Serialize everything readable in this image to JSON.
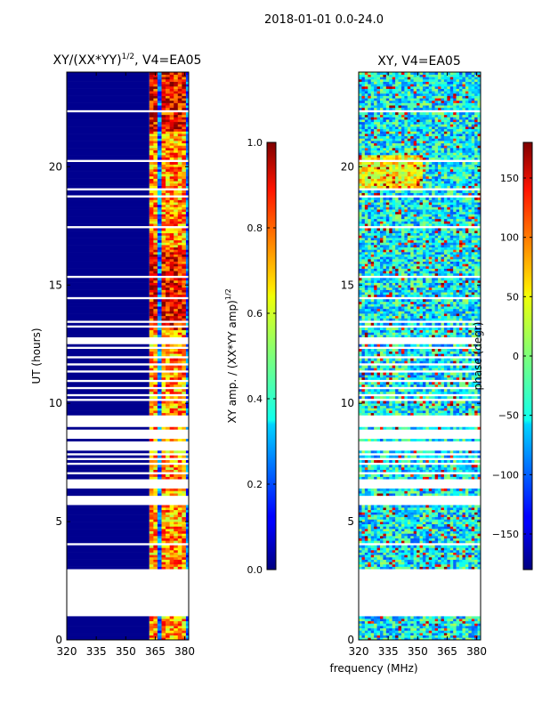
{
  "figure": {
    "suptitle": "2018-01-01 0.0-24.0"
  },
  "shared": {
    "xlabel": "frequency (MHz)"
  },
  "chart_data": [
    {
      "type": "heatmap",
      "title_main": "XY/(XX*YY)",
      "title_sup": "1/2",
      "title_tail": ", V4=EA05",
      "xlabel": "",
      "ylabel": "UT (hours)",
      "xlim": [
        320,
        382
      ],
      "ylim": [
        0,
        24
      ],
      "xticks": [
        320,
        335,
        350,
        365,
        380
      ],
      "yticks": [
        0,
        5,
        10,
        15,
        20
      ],
      "gaps_hours": [
        [
          0.9,
          3.0
        ],
        [
          5.65,
          6.0
        ],
        [
          6.35,
          6.6
        ],
        [
          12.45,
          12.75
        ]
      ],
      "bright_channels_mhz": [
        364.5,
        369.5,
        374.5,
        379.0
      ],
      "colorbar": {
        "label_main": "XY amp. / (XX*YY amp)",
        "label_sup": "1/2",
        "range": [
          0.0,
          1.0
        ],
        "ticks": [
          "0.0",
          "0.2",
          "0.4",
          "0.6",
          "0.8",
          "1.0"
        ]
      }
    },
    {
      "type": "heatmap",
      "title": "XY, V4=EA05",
      "xlabel": "frequency (MHz)",
      "ylabel": "",
      "xlim": [
        320,
        382
      ],
      "ylim": [
        0,
        24
      ],
      "xticks": [
        320,
        335,
        350,
        365,
        380
      ],
      "yticks": [
        0,
        5,
        10,
        15,
        20
      ],
      "colorbar": {
        "label": "phase (degr)",
        "range": [
          -180,
          180
        ],
        "ticks": [
          "−150",
          "−100",
          "−50",
          "0",
          "50",
          "100",
          "150"
        ]
      }
    }
  ]
}
